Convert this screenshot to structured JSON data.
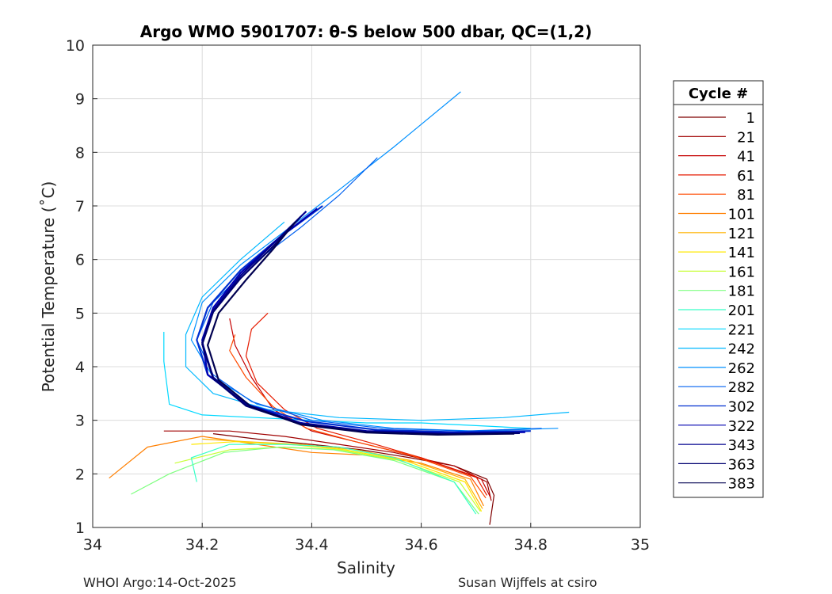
{
  "chart_data": {
    "type": "line",
    "title": "Argo WMO 5901707: θ-S below 500 dbar,  QC=(1,2)",
    "xlabel": "Salinity",
    "ylabel": "Potential Temperature (˚C)",
    "xlim": [
      34,
      35
    ],
    "ylim": [
      1,
      10
    ],
    "xticks": [
      "34",
      "34.2",
      "34.4",
      "34.6",
      "34.8",
      "35"
    ],
    "yticks": [
      "1",
      "2",
      "3",
      "4",
      "5",
      "6",
      "7",
      "8",
      "9",
      "10"
    ],
    "grid": true,
    "legend_title": "Cycle #",
    "legend_position": "right-outside",
    "series": [
      {
        "name": "1",
        "color": "#7f0000",
        "points": [
          [
            34.725,
            1.05
          ],
          [
            34.733,
            1.6
          ],
          [
            34.72,
            1.9
          ],
          [
            34.66,
            2.15
          ],
          [
            34.58,
            2.3
          ],
          [
            34.49,
            2.45
          ],
          [
            34.4,
            2.55
          ],
          [
            34.3,
            2.65
          ],
          [
            34.22,
            2.75
          ]
        ]
      },
      {
        "name": "21",
        "color": "#a00000",
        "points": [
          [
            34.728,
            1.5
          ],
          [
            34.72,
            1.85
          ],
          [
            34.66,
            2.15
          ],
          [
            34.55,
            2.4
          ],
          [
            34.45,
            2.55
          ],
          [
            34.35,
            2.7
          ],
          [
            34.25,
            2.8
          ],
          [
            34.13,
            2.8
          ]
        ]
      },
      {
        "name": "41",
        "color": "#c40000",
        "points": [
          [
            34.727,
            1.55
          ],
          [
            34.71,
            1.9
          ],
          [
            34.6,
            2.3
          ],
          [
            34.5,
            2.55
          ],
          [
            34.4,
            2.8
          ],
          [
            34.33,
            3.2
          ],
          [
            34.29,
            3.8
          ],
          [
            34.26,
            4.4
          ],
          [
            34.25,
            4.9
          ]
        ]
      },
      {
        "name": "61",
        "color": "#e61b00",
        "points": [
          [
            34.72,
            1.6
          ],
          [
            34.7,
            1.95
          ],
          [
            34.6,
            2.3
          ],
          [
            34.5,
            2.6
          ],
          [
            34.41,
            2.85
          ],
          [
            34.35,
            3.2
          ],
          [
            34.3,
            3.7
          ],
          [
            34.28,
            4.2
          ],
          [
            34.29,
            4.7
          ],
          [
            34.32,
            5.0
          ]
        ]
      },
      {
        "name": "81",
        "color": "#ff4a00",
        "points": [
          [
            34.718,
            1.55
          ],
          [
            34.69,
            1.95
          ],
          [
            34.58,
            2.35
          ],
          [
            34.48,
            2.6
          ],
          [
            34.39,
            2.85
          ],
          [
            34.33,
            3.25
          ],
          [
            34.28,
            3.8
          ],
          [
            34.25,
            4.3
          ],
          [
            34.26,
            4.6
          ]
        ]
      },
      {
        "name": "101",
        "color": "#ff7f00",
        "points": [
          [
            34.714,
            1.4
          ],
          [
            34.69,
            1.9
          ],
          [
            34.6,
            2.2
          ],
          [
            34.5,
            2.35
          ],
          [
            34.4,
            2.4
          ],
          [
            34.3,
            2.55
          ],
          [
            34.2,
            2.7
          ],
          [
            34.1,
            2.5
          ],
          [
            34.03,
            1.92
          ]
        ]
      },
      {
        "name": "121",
        "color": "#ffb300",
        "points": [
          [
            34.712,
            1.35
          ],
          [
            34.68,
            1.9
          ],
          [
            34.58,
            2.25
          ],
          [
            34.48,
            2.45
          ],
          [
            34.38,
            2.55
          ],
          [
            34.28,
            2.6
          ],
          [
            34.2,
            2.65
          ]
        ]
      },
      {
        "name": "141",
        "color": "#ffe800",
        "points": [
          [
            34.71,
            1.3
          ],
          [
            34.68,
            1.85
          ],
          [
            34.57,
            2.25
          ],
          [
            34.46,
            2.45
          ],
          [
            34.36,
            2.55
          ],
          [
            34.26,
            2.6
          ],
          [
            34.18,
            2.55
          ]
        ]
      },
      {
        "name": "161",
        "color": "#c8ff37",
        "points": [
          [
            34.708,
            1.3
          ],
          [
            34.67,
            1.85
          ],
          [
            34.56,
            2.25
          ],
          [
            34.45,
            2.45
          ],
          [
            34.35,
            2.5
          ],
          [
            34.25,
            2.45
          ],
          [
            34.15,
            2.2
          ]
        ]
      },
      {
        "name": "181",
        "color": "#7fff80",
        "points": [
          [
            34.705,
            1.25
          ],
          [
            34.66,
            1.85
          ],
          [
            34.55,
            2.25
          ],
          [
            34.44,
            2.45
          ],
          [
            34.34,
            2.5
          ],
          [
            34.24,
            2.4
          ],
          [
            34.14,
            2.0
          ],
          [
            34.07,
            1.62
          ]
        ]
      },
      {
        "name": "201",
        "color": "#37ffc8",
        "points": [
          [
            34.7,
            1.25
          ],
          [
            34.66,
            1.85
          ],
          [
            34.55,
            2.3
          ],
          [
            34.45,
            2.5
          ],
          [
            34.35,
            2.55
          ],
          [
            34.25,
            2.55
          ],
          [
            34.18,
            2.3
          ],
          [
            34.19,
            1.85
          ]
        ]
      },
      {
        "name": "221",
        "color": "#00d8ff",
        "points": [
          [
            34.8,
            2.85
          ],
          [
            34.7,
            2.9
          ],
          [
            34.6,
            2.95
          ],
          [
            34.5,
            2.95
          ],
          [
            34.4,
            3.0
          ],
          [
            34.3,
            3.05
          ],
          [
            34.2,
            3.1
          ],
          [
            34.14,
            3.3
          ],
          [
            34.13,
            4.1
          ],
          [
            34.13,
            4.65
          ]
        ]
      },
      {
        "name": "242",
        "color": "#00b8ff",
        "points": [
          [
            34.87,
            3.15
          ],
          [
            34.75,
            3.05
          ],
          [
            34.6,
            3.0
          ],
          [
            34.45,
            3.05
          ],
          [
            34.32,
            3.2
          ],
          [
            34.22,
            3.5
          ],
          [
            34.17,
            4.0
          ],
          [
            34.17,
            4.6
          ],
          [
            34.2,
            5.3
          ],
          [
            34.27,
            6.0
          ],
          [
            34.35,
            6.7
          ]
        ]
      },
      {
        "name": "262",
        "color": "#0090ff",
        "points": [
          [
            34.85,
            2.85
          ],
          [
            34.7,
            2.8
          ],
          [
            34.55,
            2.85
          ],
          [
            34.42,
            3.0
          ],
          [
            34.3,
            3.3
          ],
          [
            34.22,
            3.8
          ],
          [
            34.18,
            4.5
          ],
          [
            34.2,
            5.2
          ],
          [
            34.27,
            5.9
          ],
          [
            34.36,
            6.6
          ],
          [
            34.45,
            7.3
          ],
          [
            34.55,
            8.1
          ],
          [
            34.672,
            9.13
          ]
        ]
      },
      {
        "name": "282",
        "color": "#0060f0",
        "points": [
          [
            34.82,
            2.85
          ],
          [
            34.68,
            2.8
          ],
          [
            34.53,
            2.85
          ],
          [
            34.4,
            3.0
          ],
          [
            34.29,
            3.35
          ],
          [
            34.22,
            3.85
          ],
          [
            34.19,
            4.5
          ],
          [
            34.22,
            5.2
          ],
          [
            34.29,
            5.9
          ],
          [
            34.38,
            6.6
          ],
          [
            34.45,
            7.2
          ],
          [
            34.52,
            7.9
          ]
        ]
      },
      {
        "name": "302",
        "color": "#0030d0",
        "points": [
          [
            34.8,
            2.8
          ],
          [
            34.66,
            2.78
          ],
          [
            34.52,
            2.82
          ],
          [
            34.39,
            2.98
          ],
          [
            34.28,
            3.3
          ],
          [
            34.21,
            3.85
          ],
          [
            34.19,
            4.5
          ],
          [
            34.21,
            5.1
          ],
          [
            34.27,
            5.8
          ],
          [
            34.34,
            6.4
          ],
          [
            34.42,
            7.0
          ]
        ]
      },
      {
        "name": "322",
        "color": "#0000b0",
        "points": [
          [
            34.79,
            2.78
          ],
          [
            34.65,
            2.76
          ],
          [
            34.5,
            2.8
          ],
          [
            34.38,
            2.95
          ],
          [
            34.28,
            3.3
          ],
          [
            34.21,
            3.85
          ],
          [
            34.2,
            4.5
          ],
          [
            34.22,
            5.1
          ],
          [
            34.27,
            5.75
          ],
          [
            34.34,
            6.4
          ],
          [
            34.41,
            6.95
          ]
        ]
      },
      {
        "name": "343",
        "color": "#00008f",
        "points": [
          [
            34.78,
            2.77
          ],
          [
            34.64,
            2.75
          ],
          [
            34.5,
            2.79
          ],
          [
            34.38,
            2.94
          ],
          [
            34.28,
            3.28
          ],
          [
            34.22,
            3.8
          ],
          [
            34.2,
            4.45
          ],
          [
            34.22,
            5.05
          ],
          [
            34.27,
            5.7
          ],
          [
            34.33,
            6.3
          ],
          [
            34.39,
            6.9
          ]
        ]
      },
      {
        "name": "363",
        "color": "#000070",
        "points": [
          [
            34.78,
            2.76
          ],
          [
            34.64,
            2.74
          ],
          [
            34.5,
            2.78
          ],
          [
            34.38,
            2.93
          ],
          [
            34.28,
            3.27
          ],
          [
            34.22,
            3.78
          ],
          [
            34.2,
            4.42
          ],
          [
            34.22,
            5.02
          ],
          [
            34.27,
            5.65
          ],
          [
            34.33,
            6.25
          ],
          [
            34.38,
            6.8
          ]
        ]
      },
      {
        "name": "383",
        "color": "#000050",
        "points": [
          [
            34.77,
            2.75
          ],
          [
            34.63,
            2.73
          ],
          [
            34.5,
            2.77
          ],
          [
            34.38,
            2.92
          ],
          [
            34.29,
            3.25
          ],
          [
            34.23,
            3.75
          ],
          [
            34.21,
            4.4
          ],
          [
            34.23,
            5.0
          ],
          [
            34.28,
            5.62
          ],
          [
            34.33,
            6.2
          ],
          [
            34.37,
            6.7
          ]
        ]
      }
    ]
  },
  "footer": {
    "left": "WHOI Argo:14-Oct-2025",
    "right": "Susan Wijffels at csiro"
  }
}
